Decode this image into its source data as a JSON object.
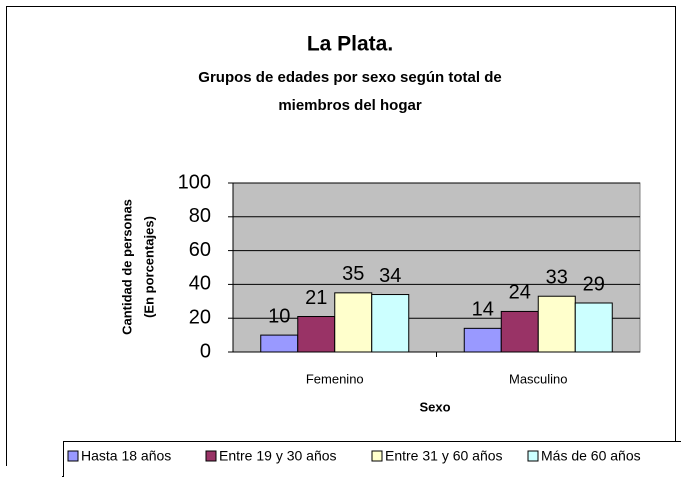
{
  "chart_data": {
    "type": "bar",
    "title": "La Plata.",
    "subtitle": [
      "Grupos de edades por sexo según total de",
      "miembros del hogar"
    ],
    "x_label": "Sexo",
    "y_label": [
      "Cantidad de personas",
      "(En porcentajes)"
    ],
    "categories": [
      "Femenino",
      "Masculino"
    ],
    "series": [
      {
        "name": "Hasta 18 años",
        "color": "#9999ff",
        "values": [
          10,
          14
        ]
      },
      {
        "name": "Entre 19 y 30 años",
        "color": "#993366",
        "values": [
          21,
          24
        ]
      },
      {
        "name": "Entre 31 y 60 años",
        "color": "#ffffcc",
        "values": [
          35,
          33
        ]
      },
      {
        "name": "Más de 60 años",
        "color": "#ccffff",
        "values": [
          34,
          29
        ]
      }
    ],
    "ylim": [
      0,
      100
    ],
    "yticks": [
      0,
      20,
      40,
      60,
      80,
      100
    ],
    "grid": true,
    "legend": "bottom"
  }
}
